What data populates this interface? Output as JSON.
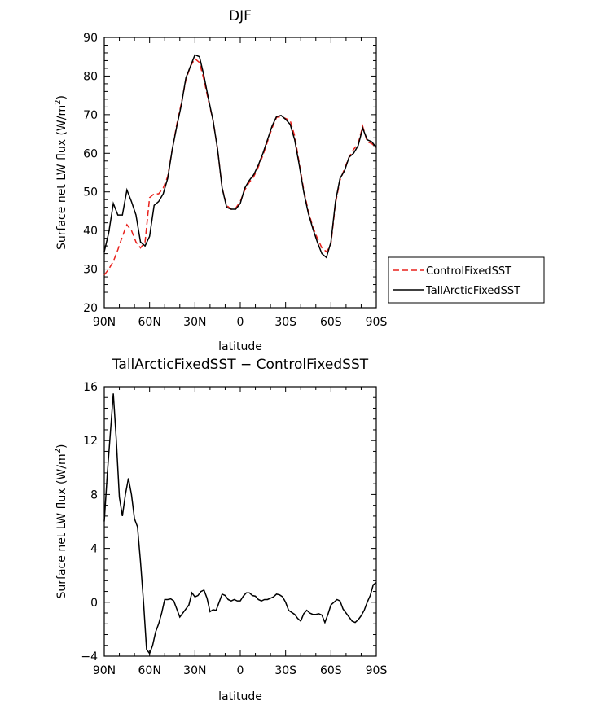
{
  "chart_data": [
    {
      "type": "line",
      "title": "DJF",
      "xlabel": "latitude",
      "ylabel": "Surface net LW flux (W/m²)",
      "ylabel_main": "Surface net LW flux (W/m",
      "ylabel_sup": "2",
      "ylabel_close": ")",
      "xlim": [
        90,
        -90
      ],
      "ylim": [
        20,
        90
      ],
      "xticks": [
        90,
        60,
        30,
        0,
        -30,
        -60,
        -90
      ],
      "xtick_labels": [
        "90N",
        "60N",
        "30N",
        "0",
        "30S",
        "60S",
        "90S"
      ],
      "yticks": [
        20,
        30,
        40,
        50,
        60,
        70,
        80,
        90
      ],
      "ytick_labels": [
        "20",
        "30",
        "40",
        "50",
        "60",
        "70",
        "80",
        "90"
      ],
      "legend": "right",
      "series": [
        {
          "name": "ControlFixedSST",
          "color": "#e8211c",
          "dash": "dashed",
          "x": [
            90,
            87,
            84,
            81,
            78,
            75,
            72,
            69,
            66,
            63,
            60,
            57,
            54,
            51,
            48,
            45,
            42,
            39,
            36,
            33,
            30,
            27,
            24,
            21,
            18,
            15,
            12,
            9,
            6,
            3,
            0,
            -3,
            -6,
            -9,
            -12,
            -15,
            -18,
            -21,
            -24,
            -27,
            -30,
            -33,
            -36,
            -39,
            -42,
            -45,
            -48,
            -51,
            -54,
            -57,
            -60,
            -63,
            -66,
            -69,
            -72,
            -75,
            -78,
            -81,
            -84,
            -87,
            -90
          ],
          "y": [
            28.5,
            30,
            32,
            35,
            38.5,
            41.5,
            40,
            37,
            35.5,
            37,
            48.5,
            49.5,
            49.5,
            51,
            54,
            61,
            67.5,
            73,
            79,
            82.5,
            84.5,
            83.5,
            79,
            73.5,
            68.5,
            61,
            51,
            46.5,
            45.5,
            45.8,
            47.5,
            50.5,
            52.5,
            54,
            56.5,
            59.5,
            63,
            66.5,
            69.3,
            69.5,
            69,
            68.5,
            64.5,
            57.5,
            50.5,
            45,
            41,
            38,
            35.5,
            34.5,
            36.5,
            47,
            53,
            56,
            59,
            61,
            62.5,
            67,
            63,
            62.5,
            61.5
          ]
        },
        {
          "name": "TallArcticFixedSST",
          "color": "#000000",
          "dash": "solid",
          "x": [
            90,
            87,
            84,
            81,
            78,
            75,
            72,
            69,
            66,
            63,
            60,
            57,
            54,
            51,
            48,
            45,
            42,
            39,
            36,
            33,
            30,
            27,
            24,
            21,
            18,
            15,
            12,
            9,
            6,
            3,
            0,
            -3,
            -6,
            -9,
            -12,
            -15,
            -18,
            -21,
            -24,
            -27,
            -30,
            -33,
            -36,
            -39,
            -42,
            -45,
            -48,
            -51,
            -54,
            -57,
            -60,
            -63,
            -66,
            -69,
            -72,
            -75,
            -78,
            -81,
            -84,
            -87,
            -90
          ],
          "y": [
            34.5,
            39.5,
            47,
            44,
            44,
            50.5,
            47.5,
            44,
            37,
            36,
            38.5,
            46.5,
            47.5,
            49.5,
            53.5,
            61,
            67,
            72.5,
            79.5,
            82.5,
            85.5,
            85,
            80,
            74,
            68.5,
            61,
            51,
            46,
            45.5,
            45.5,
            47,
            51,
            53,
            54.5,
            57,
            60,
            63.5,
            67,
            69.5,
            69.8,
            68.8,
            67.5,
            63.5,
            57,
            50,
            44.5,
            40.5,
            37,
            34,
            33,
            37,
            47.5,
            53.5,
            55.5,
            59,
            60,
            62,
            66.5,
            63.5,
            63,
            61.5
          ]
        }
      ]
    },
    {
      "type": "line",
      "title": "TallArcticFixedSST − ControlFixedSST",
      "xlabel": "latitude",
      "ylabel": "Surface net LW flux (W/m²)",
      "ylabel_main": "Surface net LW flux (W/m",
      "ylabel_sup": "2",
      "ylabel_close": ")",
      "xlim": [
        90,
        -90
      ],
      "ylim": [
        -4,
        16
      ],
      "xticks": [
        90,
        60,
        30,
        0,
        -30,
        -60,
        -90
      ],
      "xtick_labels": [
        "90N",
        "60N",
        "30N",
        "0",
        "30S",
        "60S",
        "90S"
      ],
      "yticks": [
        -4,
        0,
        4,
        8,
        12,
        16
      ],
      "ytick_labels": [
        "−4",
        "0",
        "4",
        "8",
        "12",
        "16"
      ],
      "series": [
        {
          "color": "#000000",
          "dash": "solid",
          "x": [
            90,
            88,
            86,
            84,
            82,
            80,
            78,
            76,
            74,
            72,
            70,
            68,
            66,
            64,
            62,
            60,
            58,
            56,
            54,
            52,
            50,
            48,
            46,
            44,
            42,
            40,
            38,
            36,
            34,
            32,
            30,
            28,
            26,
            24,
            22,
            20,
            18,
            16,
            14,
            12,
            10,
            8,
            6,
            4,
            2,
            0,
            -2,
            -4,
            -6,
            -8,
            -10,
            -12,
            -14,
            -16,
            -18,
            -20,
            -22,
            -24,
            -26,
            -28,
            -30,
            -32,
            -34,
            -36,
            -38,
            -40,
            -42,
            -44,
            -46,
            -48,
            -50,
            -52,
            -54,
            -56,
            -58,
            -60,
            -62,
            -64,
            -66,
            -68,
            -70,
            -72,
            -74,
            -76,
            -78,
            -80,
            -82,
            -84,
            -86,
            -88,
            -90
          ],
          "y": [
            6,
            9.5,
            12.5,
            15.5,
            12,
            7.8,
            6.4,
            8,
            9.2,
            8,
            6.2,
            5.6,
            3,
            0,
            -3.5,
            -3.8,
            -3.2,
            -2.2,
            -1.6,
            -0.8,
            0.2,
            0.2,
            0.25,
            0.1,
            -0.5,
            -1.1,
            -0.8,
            -0.5,
            -0.2,
            0.7,
            0.4,
            0.5,
            0.8,
            0.9,
            0.3,
            -0.7,
            -0.55,
            -0.6,
            0,
            0.6,
            0.5,
            0.2,
            0.1,
            0.2,
            0.1,
            0.1,
            0.45,
            0.7,
            0.7,
            0.5,
            0.45,
            0.2,
            0.1,
            0.2,
            0.2,
            0.3,
            0.4,
            0.6,
            0.55,
            0.4,
            0,
            -0.6,
            -0.75,
            -0.9,
            -1.2,
            -1.4,
            -0.85,
            -0.6,
            -0.8,
            -0.9,
            -0.9,
            -0.85,
            -0.95,
            -1.5,
            -0.9,
            -0.2,
            0,
            0.2,
            0.1,
            -0.5,
            -0.8,
            -1.1,
            -1.4,
            -1.5,
            -1.3,
            -1.0,
            -0.6,
            0,
            0.5,
            1.3,
            1.45
          ]
        }
      ]
    }
  ]
}
